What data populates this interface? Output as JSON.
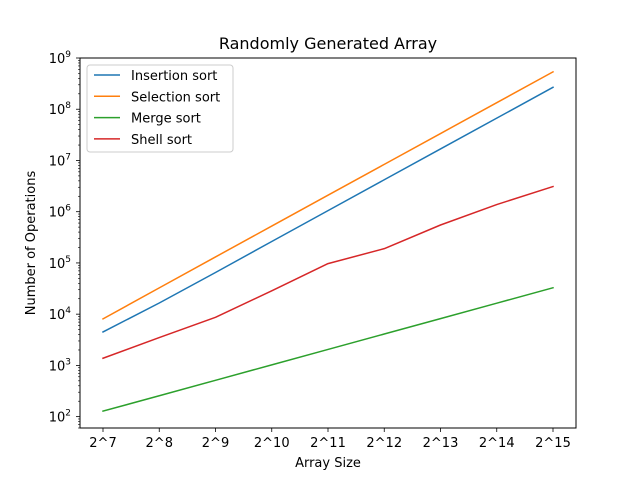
{
  "chart_data": {
    "type": "line",
    "title": "Randomly Generated Array",
    "xlabel": "Array Size",
    "ylabel": "Number of Operations",
    "categories": [
      "2^7",
      "2^8",
      "2^9",
      "2^10",
      "2^11",
      "2^12",
      "2^13",
      "2^14",
      "2^15"
    ],
    "yscale": "log",
    "ylim": [
      60,
      1000000000
    ],
    "y_ticks": [
      {
        "value": 100,
        "mantissa": "10",
        "exp": "2"
      },
      {
        "value": 1000,
        "mantissa": "10",
        "exp": "3"
      },
      {
        "value": 10000,
        "mantissa": "10",
        "exp": "4"
      },
      {
        "value": 100000,
        "mantissa": "10",
        "exp": "5"
      },
      {
        "value": 1000000,
        "mantissa": "10",
        "exp": "6"
      },
      {
        "value": 10000000,
        "mantissa": "10",
        "exp": "7"
      },
      {
        "value": 100000000,
        "mantissa": "10",
        "exp": "8"
      },
      {
        "value": 1000000000,
        "mantissa": "10",
        "exp": "9"
      }
    ],
    "grid": false,
    "legend": "top-left",
    "series": [
      {
        "name": "Insertion sort",
        "color": "#1f77b4",
        "values": [
          4500,
          16500,
          65000,
          262000,
          1050000,
          4200000,
          16800000,
          67000000,
          268000000
        ]
      },
      {
        "name": "Selection sort",
        "color": "#ff7f0e",
        "values": [
          8100,
          32600,
          131000,
          524000,
          2100000,
          8390000,
          33550000,
          134200000,
          536800000
        ]
      },
      {
        "name": "Merge sort",
        "color": "#2ca02c",
        "values": [
          128,
          256,
          512,
          1024,
          2048,
          4096,
          8192,
          16384,
          32768
        ]
      },
      {
        "name": "Shell sort",
        "color": "#d62728",
        "values": [
          1380,
          3500,
          8700,
          28500,
          97000,
          190000,
          550000,
          1380000,
          3100000
        ]
      }
    ]
  }
}
